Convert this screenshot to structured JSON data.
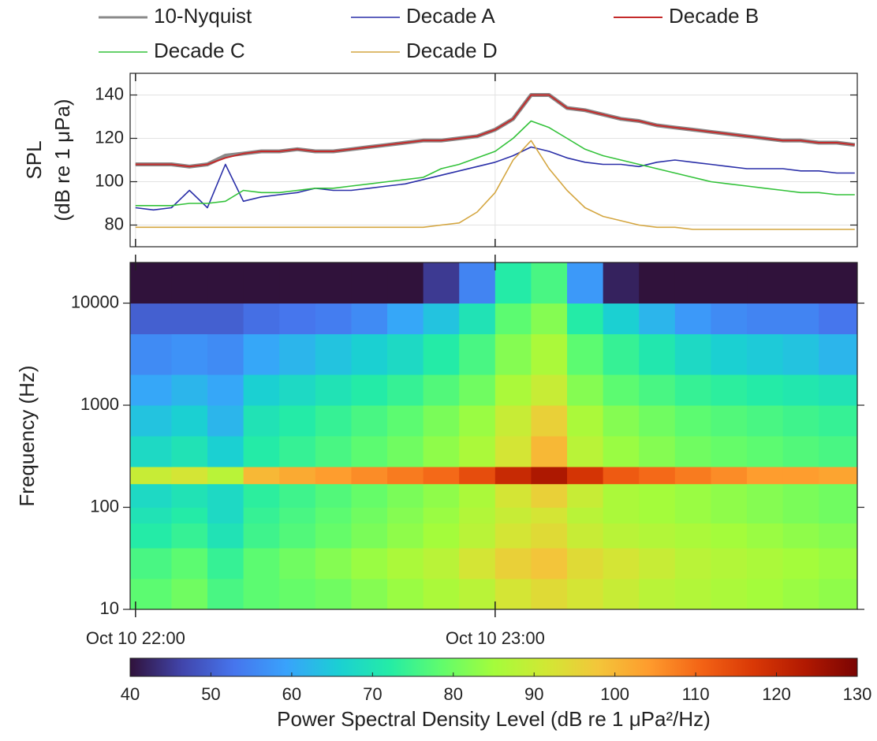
{
  "chart_data": [
    {
      "type": "line",
      "ylabel": [
        "SPL",
        "(dB re 1 μPa)"
      ],
      "legend": "top",
      "grid": true,
      "x": [
        22,
        22.05,
        22.1,
        22.15,
        22.2,
        22.25,
        22.3,
        22.35,
        22.4,
        22.45,
        22.5,
        22.55,
        22.6,
        22.65,
        22.7,
        22.75,
        22.8,
        22.85,
        22.9,
        22.95,
        23,
        23.05,
        23.1,
        23.15,
        23.2,
        23.25,
        23.3,
        23.35,
        23.4,
        23.45,
        23.5,
        23.55,
        23.6,
        23.65,
        23.7,
        23.75,
        23.8,
        23.85,
        23.9,
        23.95,
        24
      ],
      "xlim": [
        21.985,
        24.007
      ],
      "ylim": [
        70,
        150
      ],
      "yticks": [
        80,
        100,
        120,
        140
      ],
      "series": [
        {
          "name": "10-Nyquist",
          "color": "#8a8a8a",
          "width": 5,
          "values": [
            108,
            108,
            108,
            107,
            108,
            112,
            113,
            114,
            114,
            115,
            114,
            114,
            115,
            116,
            117,
            118,
            119,
            119,
            120,
            121,
            124,
            129,
            140,
            140,
            134,
            133,
            131,
            129,
            128,
            126,
            125,
            124,
            123,
            122,
            121,
            120,
            119,
            119,
            118,
            118,
            117
          ]
        },
        {
          "name": "Decade A",
          "color": "#2a2fa8",
          "width": 1.6,
          "values": [
            88,
            87,
            88,
            96,
            88,
            108,
            91,
            93,
            94,
            95,
            97,
            96,
            96,
            97,
            98,
            99,
            101,
            103,
            105,
            107,
            109,
            112,
            116,
            114,
            111,
            109,
            108,
            108,
            107,
            109,
            110,
            109,
            108,
            107,
            106,
            106,
            106,
            105,
            105,
            104,
            104
          ]
        },
        {
          "name": "Decade B",
          "color": "#c42a2a",
          "width": 2,
          "values": [
            108,
            108,
            108,
            107,
            108,
            111,
            113,
            114,
            114,
            115,
            114,
            114,
            115,
            116,
            117,
            118,
            119,
            119,
            120,
            121,
            124,
            129,
            140,
            140,
            134,
            133,
            131,
            129,
            128,
            126,
            125,
            124,
            123,
            122,
            121,
            120,
            119,
            119,
            118,
            118,
            117
          ]
        },
        {
          "name": "Decade C",
          "color": "#33c23a",
          "width": 1.6,
          "values": [
            89,
            89,
            89,
            90,
            90,
            91,
            96,
            95,
            95,
            96,
            97,
            97,
            98,
            99,
            100,
            101,
            102,
            106,
            108,
            111,
            114,
            120,
            128,
            125,
            120,
            115,
            112,
            110,
            108,
            106,
            104,
            102,
            100,
            99,
            98,
            97,
            96,
            95,
            95,
            94,
            94
          ]
        },
        {
          "name": "Decade D",
          "color": "#d4a640",
          "width": 1.6,
          "values": [
            79,
            79,
            79,
            79,
            79,
            79,
            79,
            79,
            79,
            79,
            79,
            79,
            79,
            79,
            79,
            79,
            79,
            80,
            81,
            86,
            95,
            110,
            119,
            106,
            96,
            88,
            84,
            82,
            80,
            79,
            79,
            78,
            78,
            78,
            78,
            78,
            78,
            78,
            78,
            78,
            78
          ]
        }
      ]
    },
    {
      "type": "heatmap",
      "ylabel": "Frequency (Hz)",
      "yscale": "log",
      "xlim": [
        21.985,
        24.007
      ],
      "xticks": [
        {
          "value": 22,
          "label": "Oct 10 22:00"
        },
        {
          "value": 23,
          "label": "Oct 10 23:00"
        }
      ],
      "ylim": [
        10,
        25000
      ],
      "yticks": [
        10,
        100,
        1000,
        10000
      ],
      "x_edges": [
        21.985,
        22.1,
        22.2,
        22.3,
        22.4,
        22.5,
        22.6,
        22.7,
        22.8,
        22.9,
        23,
        23.1,
        23.2,
        23.3,
        23.4,
        23.5,
        23.6,
        23.7,
        23.8,
        23.9,
        24.007
      ],
      "y_edges": [
        10,
        20,
        40,
        70,
        100,
        170,
        250,
        500,
        1000,
        2000,
        5000,
        10000,
        25000
      ],
      "values": [
        [
          78,
          80,
          76,
          78,
          79,
          80,
          82,
          84,
          86,
          88,
          92,
          94,
          92,
          90,
          88,
          87,
          86,
          85,
          84,
          83
        ],
        [
          76,
          78,
          74,
          78,
          80,
          82,
          84,
          86,
          88,
          92,
          96,
          98,
          94,
          92,
          90,
          88,
          87,
          86,
          85,
          84
        ],
        [
          72,
          74,
          70,
          75,
          77,
          79,
          81,
          83,
          85,
          88,
          92,
          94,
          90,
          88,
          87,
          86,
          85,
          84,
          83,
          82
        ],
        [
          70,
          72,
          68,
          74,
          76,
          78,
          80,
          82,
          84,
          87,
          90,
          92,
          88,
          86,
          85,
          84,
          83,
          82,
          81,
          80
        ],
        [
          68,
          70,
          68,
          73,
          75,
          77,
          79,
          81,
          83,
          86,
          92,
          96,
          90,
          86,
          85,
          84,
          83,
          82,
          81,
          80
        ],
        [
          90,
          92,
          88,
          100,
          102,
          104,
          106,
          108,
          110,
          114,
          120,
          124,
          118,
          112,
          110,
          108,
          106,
          104,
          104,
          103
        ],
        [
          68,
          70,
          66,
          72,
          74,
          76,
          78,
          80,
          83,
          86,
          92,
          100,
          88,
          84,
          82,
          80,
          79,
          78,
          77,
          76
        ],
        [
          64,
          66,
          62,
          70,
          72,
          74,
          76,
          78,
          81,
          84,
          90,
          96,
          86,
          82,
          80,
          78,
          77,
          76,
          75,
          74
        ],
        [
          60,
          62,
          60,
          66,
          68,
          70,
          72,
          74,
          77,
          80,
          86,
          90,
          82,
          78,
          76,
          74,
          73,
          72,
          71,
          70
        ],
        [
          56,
          57,
          56,
          60,
          62,
          64,
          66,
          68,
          72,
          76,
          82,
          86,
          78,
          74,
          71,
          68,
          66,
          65,
          64,
          62
        ],
        [
          50,
          50,
          50,
          52,
          53,
          54,
          56,
          60,
          64,
          70,
          78,
          82,
          72,
          66,
          62,
          58,
          56,
          55,
          55,
          53
        ],
        [
          40,
          40,
          40,
          40,
          40,
          40,
          40,
          40,
          45,
          55,
          72,
          76,
          58,
          42,
          40,
          40,
          40,
          40,
          40,
          40
        ]
      ],
      "clim": [
        40,
        130
      ],
      "colormap": [
        "#30123b",
        "#4145ab",
        "#4675ed",
        "#39a2fc",
        "#1bcfd4",
        "#24eca6",
        "#61fc6c",
        "#a4fc3b",
        "#d1e834",
        "#f3c63a",
        "#fe9b2d",
        "#f36315",
        "#d93806",
        "#b11901",
        "#7a0403"
      ],
      "colorbar": {
        "label": "Power Spectral Density Level (dB re 1 μPa²/Hz)",
        "ticks": [
          40,
          50,
          60,
          70,
          80,
          90,
          100,
          110,
          120,
          130
        ]
      }
    }
  ]
}
